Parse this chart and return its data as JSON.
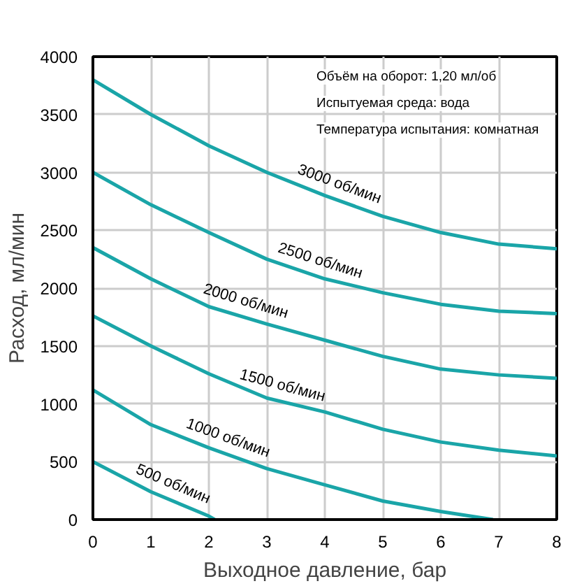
{
  "chart_data": {
    "type": "line",
    "xlabel": "Выходное давление, бар",
    "ylabel": "Расход, мл/мин",
    "xlim": [
      0,
      8
    ],
    "xticks": [
      0,
      1,
      2,
      3,
      4,
      5,
      6,
      7,
      8
    ],
    "ylim": [
      0,
      4000
    ],
    "yticks": [
      0,
      500,
      1000,
      1500,
      2000,
      2500,
      3000,
      3500,
      4000
    ],
    "grid": true,
    "line_style": "solid",
    "series": [
      {
        "name": "3000 об/мин",
        "color": "#1aa5a8",
        "x": [
          0,
          1,
          2,
          3,
          4,
          5,
          6,
          7,
          8
        ],
        "values": [
          3800,
          3500,
          3230,
          3000,
          2800,
          2620,
          2480,
          2380,
          2340
        ]
      },
      {
        "name": "2500 об/мин",
        "color": "#1aa5a8",
        "x": [
          0,
          1,
          2,
          3,
          4,
          5,
          6,
          7,
          8
        ],
        "values": [
          3000,
          2720,
          2480,
          2250,
          2080,
          1960,
          1860,
          1800,
          1780
        ]
      },
      {
        "name": "2000 об/мин",
        "color": "#1aa5a8",
        "x": [
          0,
          1,
          2,
          3,
          4,
          5,
          6,
          7,
          8
        ],
        "values": [
          2350,
          2080,
          1840,
          1690,
          1550,
          1410,
          1300,
          1250,
          1220
        ]
      },
      {
        "name": "1500 об/мин",
        "color": "#1aa5a8",
        "x": [
          0,
          1,
          2,
          3,
          4,
          5,
          6,
          7,
          8
        ],
        "values": [
          1760,
          1500,
          1260,
          1050,
          930,
          780,
          670,
          600,
          550
        ]
      },
      {
        "name": "1000 об/мин",
        "color": "#1aa5a8",
        "x": [
          0,
          1,
          2,
          3,
          4,
          5,
          6,
          6.9
        ],
        "values": [
          1120,
          820,
          620,
          440,
          300,
          160,
          70,
          0
        ]
      },
      {
        "name": "500 об/мин",
        "color": "#1aa5a8",
        "x": [
          0,
          1,
          2,
          2.1
        ],
        "values": [
          500,
          240,
          30,
          0
        ]
      }
    ],
    "annotations": [
      "Объём на оборот: 1,20 мл/об",
      "Испытуемая среда: вода",
      "Температура испытания: комнатная"
    ]
  }
}
